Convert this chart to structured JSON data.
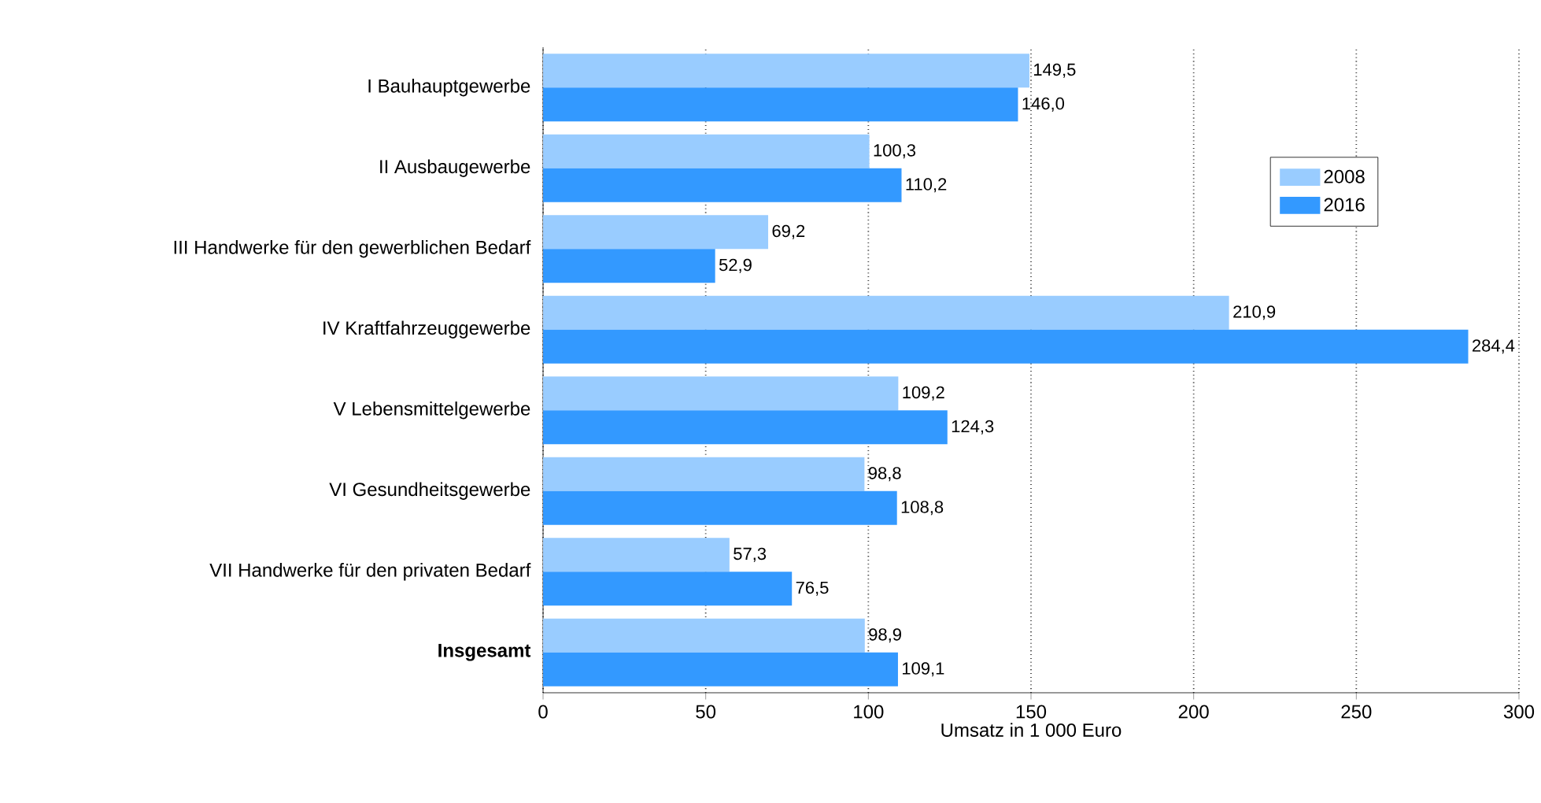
{
  "chart_data": {
    "type": "bar",
    "orientation": "horizontal",
    "xlabel": "Umsatz in 1 000 Euro",
    "categories": [
      "I Bauhauptgewerbe",
      "II Ausbaugewerbe",
      "III Handwerke für den gewerblichen Bedarf",
      "IV Kraftfahrzeuggewerbe",
      "V Lebensmittelgewerbe",
      "VI Gesundheitsgewerbe",
      "VII Handwerke für den privaten Bedarf",
      "**Insgesamt**"
    ],
    "series": [
      {
        "name": "2008",
        "color": "#99ccff",
        "values": [
          149.5,
          100.3,
          69.2,
          210.9,
          109.2,
          98.8,
          57.3,
          98.9
        ],
        "value_labels": [
          "149,5",
          "100,3",
          "69,2",
          "210,9",
          "109,2",
          "98,8",
          "57,3",
          "98,9"
        ]
      },
      {
        "name": "2016",
        "color": "#3399ff",
        "values": [
          146.0,
          110.2,
          52.9,
          284.4,
          124.3,
          108.8,
          76.5,
          109.1
        ],
        "value_labels": [
          "146,0",
          "110,2",
          "52,9",
          "284,4",
          "124,3",
          "108,8",
          "76,5",
          "109,1"
        ]
      }
    ],
    "xlim": [
      0,
      300
    ],
    "xticks": [
      0,
      50,
      100,
      150,
      200,
      250,
      300
    ],
    "grid": "x",
    "legend": "top right"
  }
}
